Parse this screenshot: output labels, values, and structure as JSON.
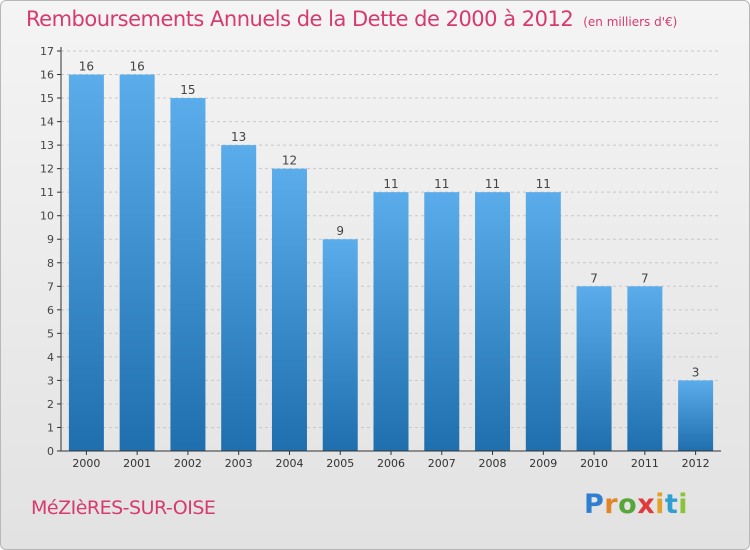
{
  "header": {
    "title": "Remboursements Annuels de la Dette de 2000 à 2012",
    "subtitle": "(en milliers d'€)"
  },
  "footer": {
    "commune": "MéZIèRES-SUR-OISE"
  },
  "logo": {
    "letters": [
      {
        "char": "P",
        "color": "#2e7fd0"
      },
      {
        "char": "r",
        "color": "#e0852a"
      },
      {
        "char": "o",
        "color": "#58a63a"
      },
      {
        "char": "x",
        "color": "#e03a3a"
      },
      {
        "char": "i",
        "color": "#e0a22a"
      },
      {
        "char": "t",
        "color": "#2e9fd0"
      },
      {
        "char": "i",
        "color": "#8ac23a"
      }
    ]
  },
  "colors": {
    "title": "#d63a6e",
    "bar_top": "#5aacea",
    "bar_bottom": "#1f6fae",
    "grid": "#c8c8c8",
    "axis": "#333333"
  },
  "chart_data": {
    "type": "bar",
    "title": "Remboursements Annuels de la Dette de 2000 à 2012",
    "subtitle": "(en milliers d'€)",
    "xlabel": "",
    "ylabel": "",
    "categories": [
      "2000",
      "2001",
      "2002",
      "2003",
      "2004",
      "2005",
      "2006",
      "2007",
      "2008",
      "2009",
      "2010",
      "2011",
      "2012"
    ],
    "values": [
      16,
      16,
      15,
      13,
      12,
      9,
      11,
      11,
      11,
      11,
      7,
      7,
      3
    ],
    "data_labels": [
      "16",
      "16",
      "15",
      "13",
      "12",
      "9",
      "11",
      "11",
      "11",
      "11",
      "7",
      "7",
      "3"
    ],
    "ylim": [
      0,
      17
    ],
    "yticks": [
      0,
      1,
      2,
      3,
      4,
      5,
      6,
      7,
      8,
      9,
      10,
      11,
      12,
      13,
      14,
      15,
      16,
      17
    ],
    "grid": true,
    "legend": "none"
  }
}
